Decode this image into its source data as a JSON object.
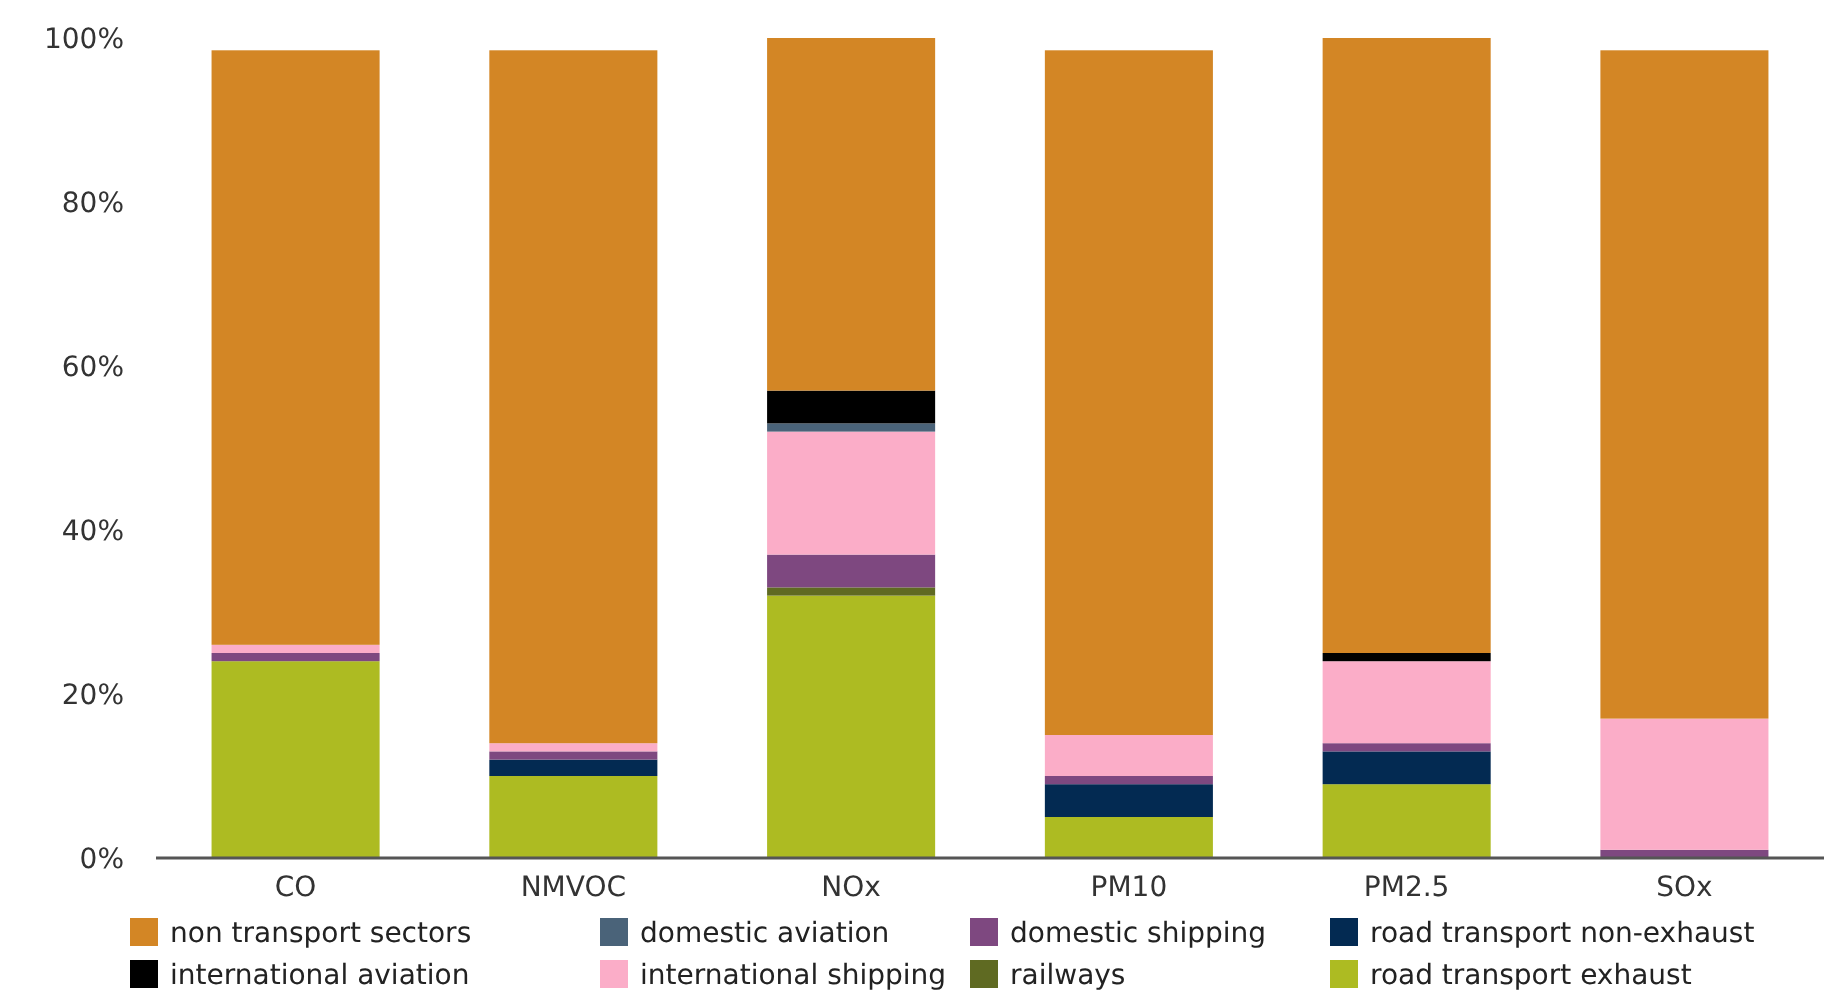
{
  "chart_data": {
    "type": "bar",
    "stacked": true,
    "categories": [
      "CO",
      "NMVOC",
      "NOx",
      "PM10",
      "PM2.5",
      "SOx"
    ],
    "series": [
      {
        "name": "road transport exhaust",
        "color": "#adbb22",
        "values": [
          24,
          10,
          32,
          5,
          9,
          0
        ]
      },
      {
        "name": "road transport non-exhaust",
        "color": "#032a52",
        "values": [
          0,
          2,
          0,
          4,
          4,
          0
        ]
      },
      {
        "name": "railways",
        "color": "#5f6a22",
        "values": [
          0,
          0,
          1,
          0,
          0,
          0
        ]
      },
      {
        "name": "domestic shipping",
        "color": "#7e4880",
        "values": [
          1,
          1,
          4,
          1,
          1,
          1
        ]
      },
      {
        "name": "international shipping",
        "color": "#fbadc8",
        "values": [
          1,
          1,
          15,
          5,
          10,
          16
        ]
      },
      {
        "name": "domestic aviation",
        "color": "#4a6379",
        "values": [
          0,
          0,
          1,
          0,
          0,
          0
        ]
      },
      {
        "name": "international aviation",
        "color": "#000000",
        "values": [
          0,
          0,
          4,
          0,
          1,
          0
        ]
      },
      {
        "name": "non transport sectors",
        "color": "#d38625",
        "values": [
          72.5,
          84.5,
          43,
          83.5,
          75,
          81.5
        ]
      }
    ],
    "ylim": [
      0,
      100
    ],
    "yticks": [
      {
        "value": 0,
        "label": "0%"
      },
      {
        "value": 20,
        "label": "20%"
      },
      {
        "value": 40,
        "label": "40%"
      },
      {
        "value": 60,
        "label": "60%"
      },
      {
        "value": 80,
        "label": "80%"
      },
      {
        "value": 100,
        "label": "100%"
      }
    ],
    "grid": false,
    "legend": "bottom"
  }
}
